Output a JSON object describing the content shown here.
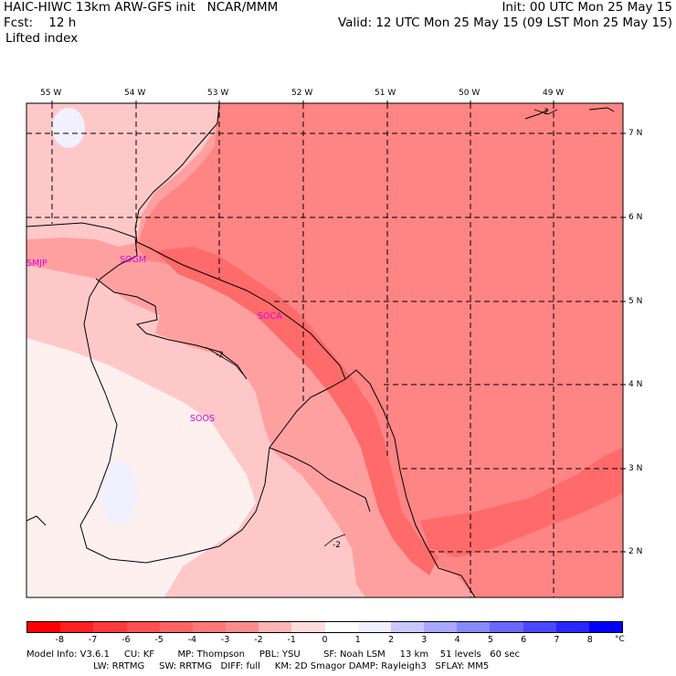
{
  "header": {
    "model_title": "HAIC-HIWC 13km ARW-GFS init   NCAR/MMM",
    "forecast_label": "Fcst:    12 h",
    "field_name": "Lifted index",
    "init_time": "Init: 00 UTC Mon 25 May 15",
    "valid_time": "Valid: 12 UTC Mon 25 May 15 (09 LST Mon 25 May 15)"
  },
  "map": {
    "lon_labels": [
      "55 W",
      "54 W",
      "53 W",
      "52 W",
      "51 W",
      "50 W",
      "49 W"
    ],
    "lat_labels": [
      "7 N",
      "6 N",
      "5 N",
      "4 N",
      "3 N",
      "2 N"
    ],
    "stations": [
      "SMJP",
      "SOGM",
      "SOCA",
      "SOOS"
    ],
    "contour_labels": [
      "-2",
      "-2",
      "-2"
    ]
  },
  "colorbar": {
    "ticks": [
      "-8",
      "-7",
      "-6",
      "-5",
      "-4",
      "-3",
      "-2",
      "-1",
      "0",
      "1",
      "2",
      "3",
      "4",
      "5",
      "6",
      "7",
      "8"
    ],
    "unit": "°C",
    "colors": [
      "#ff0000",
      "#ff1c1c",
      "#ff3838",
      "#ff5050",
      "#ff6a6a",
      "#ff8484",
      "#ffa0a0",
      "#ffc8c8",
      "#fff0f0",
      "#f0f0ff",
      "#c8c8ff",
      "#a0a0ff",
      "#8080ff",
      "#6060ff",
      "#4040ff",
      "#2020ff",
      "#0000ff"
    ]
  },
  "footer": {
    "line1": "Model Info: V3.6.1     CU: KF        MP: Thompson     PBL: YSU        SF: Noah LSM     13 km    51 levels   60 sec",
    "line2": "                       LW: RRTMG     SW: RRTMG   DIFF: full     KM: 2D Smagor DAMP: Rayleigh3   SFLAY: MM5"
  }
}
